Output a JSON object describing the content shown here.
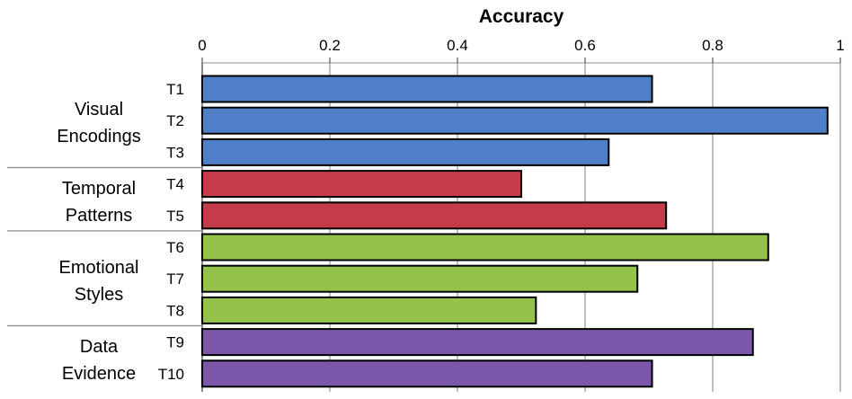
{
  "chart_data": {
    "type": "bar",
    "orientation": "horizontal",
    "title": "Accuracy",
    "xlabel": "Accuracy",
    "ylabel": "",
    "xlim": [
      0,
      1
    ],
    "x_ticks": [
      "0",
      "0.2",
      "0.4",
      "0.6",
      "0.8",
      "1"
    ],
    "x_tick_values": [
      0,
      0.2,
      0.4,
      0.6,
      0.8,
      1
    ],
    "grid": "vertical",
    "groups": [
      {
        "label": [
          "Visual",
          "Encodings"
        ],
        "color": "#4F7FC9",
        "bars": [
          {
            "label": "T1",
            "value": 0.705
          },
          {
            "label": "T2",
            "value": 0.98
          },
          {
            "label": "T3",
            "value": 0.637
          }
        ]
      },
      {
        "label": [
          "Temporal",
          "Patterns"
        ],
        "color": "#C43C4A",
        "bars": [
          {
            "label": "T4",
            "value": 0.5
          },
          {
            "label": "T5",
            "value": 0.727
          }
        ]
      },
      {
        "label": [
          "Emotional",
          "Styles"
        ],
        "color": "#95C24B",
        "bars": [
          {
            "label": "T6",
            "value": 0.887
          },
          {
            "label": "T7",
            "value": 0.682
          },
          {
            "label": "T8",
            "value": 0.523
          }
        ]
      },
      {
        "label": [
          "Data",
          "Evidence"
        ],
        "color": "#7C56A8",
        "bars": [
          {
            "label": "T9",
            "value": 0.863
          },
          {
            "label": "T10",
            "value": 0.705
          }
        ]
      }
    ]
  }
}
